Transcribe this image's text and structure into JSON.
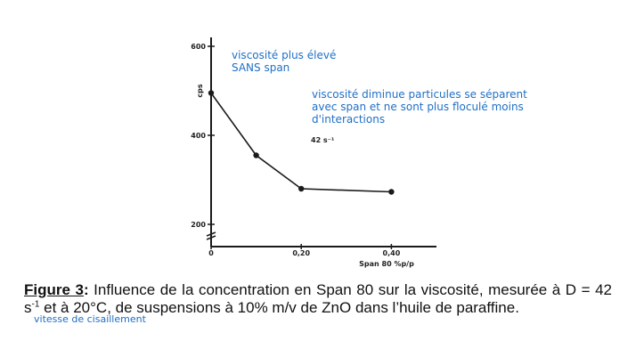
{
  "chart_data": {
    "type": "line",
    "title": "",
    "xlabel": "Span 80 %p/p",
    "ylabel": "cps",
    "xlim": [
      0,
      0.5
    ],
    "ylim": [
      150,
      620
    ],
    "y_axis_break": true,
    "x_ticks": [
      {
        "value": 0.0,
        "label": "0"
      },
      {
        "value": 0.2,
        "label": "0,20"
      },
      {
        "value": 0.4,
        "label": "0,40"
      }
    ],
    "y_ticks": [
      {
        "value": 200,
        "label": "200"
      },
      {
        "value": 400,
        "label": "400"
      },
      {
        "value": 600,
        "label": "600"
      }
    ],
    "x": [
      0.0,
      0.1,
      0.2,
      0.4
    ],
    "series": [
      {
        "values": [
          495,
          355,
          280,
          273
        ]
      }
    ],
    "shear_rate_label": "42 s⁻¹",
    "grid": false,
    "line_color": "#1a1a1a"
  },
  "annotations": {
    "high_viscosity": [
      "viscosité plus élevé",
      "SANS span"
    ],
    "low_viscosity": [
      "viscosité diminue particules se séparent",
      "avec span et ne sont plus floculé moins",
      "d'interactions"
    ],
    "shear_rate": "vitesse de cisaillement"
  },
  "caption": {
    "label": "Figure 3",
    "sep": ":",
    "before_exp": " Influence de la concentration en Span 80 sur la viscosité, mesurée à D = 42 s",
    "exponent": "-1",
    "after_exp": " et à 20°C, de suspensions à 10% m/v de ZnO dans l’huile de paraffine."
  }
}
